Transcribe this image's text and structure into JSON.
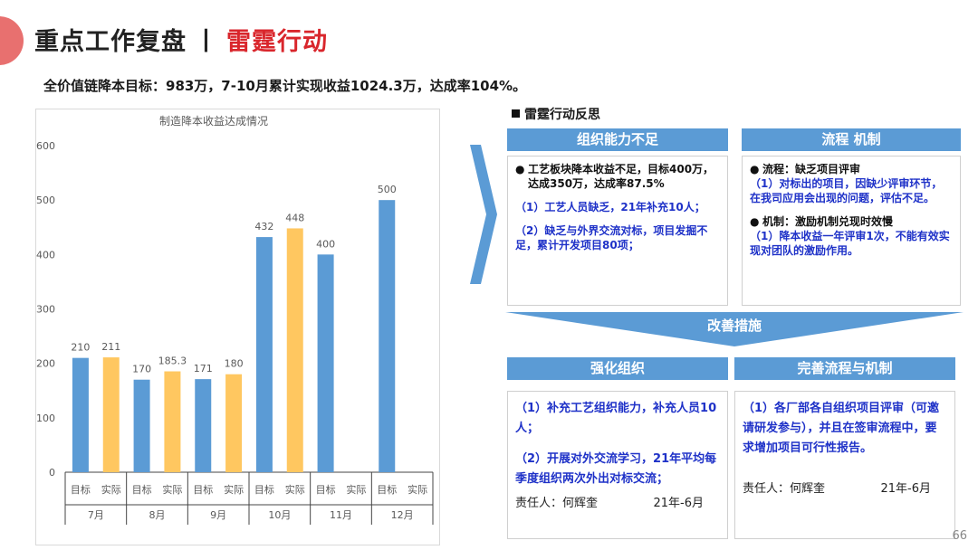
{
  "header": {
    "title_main": "重点工作复盘",
    "title_sep": "丨",
    "title_sub": "雷霆行动",
    "summary": "全价值链降本目标：983万，7-10月累计实现收益1024.3万，达成率104%。"
  },
  "reflection": {
    "section_title": "雷霆行动反思",
    "left_header": "组织能力不足",
    "left_bullet_1": "工艺板块降本收益不足，目标400万，达成350万，达成率87.5%",
    "left_item_1": "（1）工艺人员缺乏，21年补充10人；",
    "left_item_2": "（2）缺乏与外界交流对标，项目发掘不足，累计开发项目80项；",
    "right_header": "流程 机制",
    "right_bullet_1": "流程：缺乏项目评审",
    "right_item_1": "（1）对标出的项目，因缺少评审环节，在我司应用会出现的问题，评估不足。",
    "right_bullet_2": "机制：激励机制兑现时效慢",
    "right_item_2": "（1）降本收益一年评审1次，不能有效实现对团队的激励作用。"
  },
  "improve": {
    "banner": "改善措施",
    "left_header": "强化组织",
    "left_item_1": "（1）补充工艺组织能力，补充人员10人；",
    "left_item_2": "（2）开展对外交流学习，21年平均每季度组织两次外出对标交流；",
    "left_owner": "责任人：何辉奎",
    "left_date": "21年-6月",
    "right_header": "完善流程与机制",
    "right_item_1": "（1）各厂部各自组织项目评审（可邀请研发参与），并且在签审流程中，要求增加项目可行性报告。",
    "right_owner": "责任人：何辉奎",
    "right_date": "21年-6月"
  },
  "page_number": "66",
  "chart_data": {
    "type": "bar",
    "title": "制造降本收益达成情况",
    "months": [
      "7月",
      "8月",
      "9月",
      "10月",
      "11月",
      "12月"
    ],
    "sub_categories": [
      "目标",
      "实际"
    ],
    "series": [
      {
        "name": "目标",
        "color": "#5b9bd5",
        "values": [
          210,
          170,
          171,
          432,
          400,
          500
        ]
      },
      {
        "name": "实际",
        "color": "#ffc760",
        "values": [
          211,
          185.3,
          180,
          448,
          null,
          null
        ]
      }
    ],
    "ylim": [
      0,
      600
    ],
    "yticks": [
      0,
      100,
      200,
      300,
      400,
      500,
      600
    ],
    "grid": false,
    "legend": "none"
  }
}
